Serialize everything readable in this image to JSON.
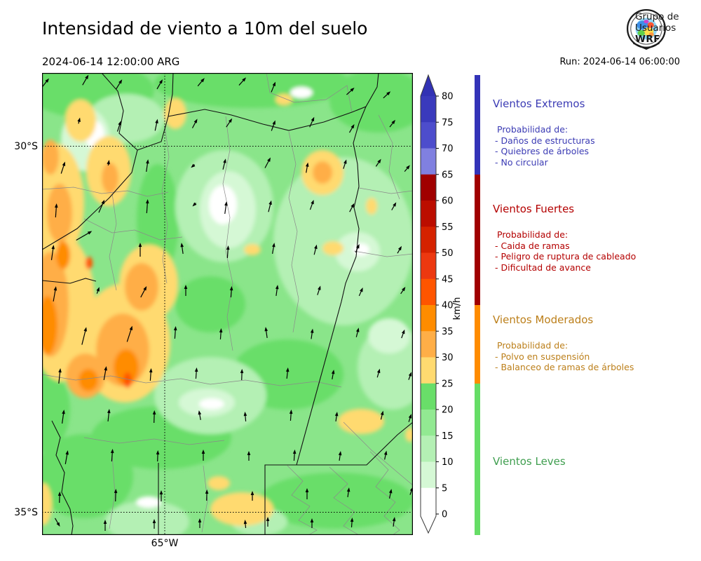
{
  "header": {
    "title": "Intensidad de viento a 10m del suelo",
    "valid_time": "2024-06-14 12:00:00 ARG",
    "run_label": "Run: 2024-06-14 06:00:00",
    "logo": {
      "line1": "Grupo de",
      "line2": "Usuarios",
      "line3": "WRF"
    }
  },
  "map": {
    "axis_labels": {
      "lat_top": "30°S",
      "lat_bottom": "35°S",
      "lon": "65°W"
    }
  },
  "colorbar": {
    "unit": "km/h",
    "ticks": [
      80,
      75,
      70,
      65,
      60,
      55,
      50,
      45,
      40,
      35,
      30,
      25,
      20,
      15,
      10,
      5,
      0
    ],
    "arrow_color": "#3232B4",
    "under_color": "#FFFFFF",
    "segment_colors": [
      "#3A3ABC",
      "#4D4DCC",
      "#8080E0",
      "#A00000",
      "#BB0D00",
      "#D52200",
      "#EC3810",
      "#FF5500",
      "#FF8C00",
      "#FFAE47",
      "#FFDA70",
      "#69DE69",
      "#92E992",
      "#B4F0B4",
      "#D5F8D5",
      "#FFFFFF"
    ]
  },
  "legend": {
    "categories": [
      {
        "name": "Vientos Extremos",
        "color": "#3B3BB4",
        "bar_color": "#3333B8",
        "range_kmh": [
          65,
          null
        ],
        "intro": "Probabilidad de:",
        "items": [
          "- Daños de estructuras",
          "- Quiebres de árboles",
          "- No circular"
        ]
      },
      {
        "name": "Vientos Fuertes",
        "color": "#B40000",
        "bar_color": "#A00000",
        "range_kmh": [
          40,
          65
        ],
        "intro": "Probabilidad de:",
        "items": [
          "- Caida de ramas",
          "- Peligro de ruptura de cableado",
          "- Dificultad de avance"
        ]
      },
      {
        "name": "Vientos Moderados",
        "color": "#BC7F1A",
        "bar_color": "#FF8C00",
        "range_kmh": [
          25,
          40
        ],
        "intro": "Probabilidad de:",
        "items": [
          "- Polvo en suspensión",
          "- Balanceo de ramas de árboles"
        ]
      },
      {
        "name": "Vientos Leves",
        "color": "#3F9E4F",
        "bar_color": "#66DD66",
        "range_kmh": [
          0,
          25
        ],
        "intro": "",
        "items": []
      }
    ]
  },
  "wind_arrows": [
    [
      5,
      14,
      38,
      16
    ],
    [
      62,
      10,
      30,
      17
    ],
    [
      110,
      16,
      32,
      16
    ],
    [
      168,
      16,
      30,
      16
    ],
    [
      227,
      13,
      40,
      15
    ],
    [
      286,
      12,
      42,
      15
    ],
    [
      330,
      20,
      22,
      16
    ],
    [
      440,
      26,
      48,
      15
    ],
    [
      492,
      31,
      47,
      14
    ],
    [
      53,
      68,
      14,
      9
    ],
    [
      110,
      76,
      18,
      16
    ],
    [
      163,
      74,
      12,
      17
    ],
    [
      218,
      72,
      28,
      15
    ],
    [
      267,
      71,
      34,
      15
    ],
    [
      330,
      75,
      20,
      16
    ],
    [
      385,
      70,
      24,
      16
    ],
    [
      442,
      79,
      30,
      14
    ],
    [
      500,
      72,
      38,
      13
    ],
    [
      30,
      135,
      18,
      18
    ],
    [
      95,
      128,
      10,
      8
    ],
    [
      150,
      132,
      8,
      18
    ],
    [
      215,
      133,
      230,
      7
    ],
    [
      260,
      130,
      14,
      16
    ],
    [
      322,
      128,
      28,
      17
    ],
    [
      378,
      135,
      10,
      15
    ],
    [
      432,
      130,
      18,
      14
    ],
    [
      480,
      128,
      34,
      13
    ],
    [
      521,
      136,
      40,
      12
    ],
    [
      20,
      196,
      4,
      20
    ],
    [
      85,
      190,
      24,
      20
    ],
    [
      150,
      190,
      4,
      20
    ],
    [
      217,
      188,
      226,
      7
    ],
    [
      262,
      192,
      8,
      18
    ],
    [
      325,
      190,
      14,
      17
    ],
    [
      385,
      188,
      20,
      15
    ],
    [
      442,
      192,
      28,
      14
    ],
    [
      502,
      190,
      30,
      13
    ],
    [
      15,
      256,
      8,
      22
    ],
    [
      60,
      232,
      60,
      26
    ],
    [
      140,
      252,
      0,
      20
    ],
    [
      200,
      250,
      352,
      16
    ],
    [
      265,
      255,
      4,
      18
    ],
    [
      330,
      250,
      10,
      16
    ],
    [
      390,
      252,
      14,
      15
    ],
    [
      450,
      250,
      24,
      13
    ],
    [
      510,
      252,
      30,
      12
    ],
    [
      18,
      315,
      10,
      22
    ],
    [
      80,
      310,
      20,
      10
    ],
    [
      145,
      312,
      28,
      18
    ],
    [
      205,
      310,
      0,
      16
    ],
    [
      270,
      312,
      4,
      16
    ],
    [
      335,
      310,
      8,
      16
    ],
    [
      395,
      310,
      18,
      14
    ],
    [
      455,
      312,
      24,
      13
    ],
    [
      515,
      310,
      34,
      12
    ],
    [
      60,
      375,
      14,
      26
    ],
    [
      125,
      372,
      18,
      24
    ],
    [
      190,
      370,
      4,
      18
    ],
    [
      255,
      372,
      4,
      16
    ],
    [
      320,
      370,
      352,
      16
    ],
    [
      385,
      372,
      8,
      15
    ],
    [
      450,
      370,
      14,
      14
    ],
    [
      515,
      372,
      20,
      13
    ],
    [
      25,
      432,
      6,
      22
    ],
    [
      90,
      428,
      10,
      20
    ],
    [
      155,
      430,
      4,
      18
    ],
    [
      220,
      428,
      4,
      16
    ],
    [
      285,
      430,
      2,
      16
    ],
    [
      350,
      428,
      6,
      16
    ],
    [
      415,
      430,
      10,
      14
    ],
    [
      480,
      428,
      16,
      13
    ],
    [
      525,
      432,
      20,
      12
    ],
    [
      30,
      490,
      8,
      20
    ],
    [
      95,
      488,
      6,
      18
    ],
    [
      160,
      490,
      2,
      18
    ],
    [
      225,
      488,
      350,
      14
    ],
    [
      290,
      490,
      355,
      14
    ],
    [
      355,
      488,
      4,
      16
    ],
    [
      420,
      490,
      8,
      14
    ],
    [
      485,
      488,
      14,
      13
    ],
    [
      525,
      492,
      18,
      12
    ],
    [
      35,
      548,
      10,
      20
    ],
    [
      100,
      545,
      4,
      18
    ],
    [
      165,
      546,
      2,
      16
    ],
    [
      230,
      545,
      0,
      16
    ],
    [
      295,
      546,
      0,
      14
    ],
    [
      360,
      545,
      4,
      16
    ],
    [
      425,
      546,
      8,
      14
    ],
    [
      490,
      545,
      12,
      13
    ],
    [
      25,
      605,
      2,
      16
    ],
    [
      105,
      602,
      2,
      18
    ],
    [
      170,
      603,
      0,
      16
    ],
    [
      235,
      602,
      2,
      16
    ],
    [
      300,
      603,
      0,
      14
    ],
    [
      378,
      600,
      0,
      16
    ],
    [
      437,
      598,
      8,
      14
    ],
    [
      497,
      600,
      12,
      14
    ],
    [
      527,
      596,
      20,
      12
    ],
    [
      22,
      641,
      150,
      14
    ],
    [
      90,
      645,
      0,
      16
    ],
    [
      160,
      643,
      0,
      14
    ],
    [
      225,
      642,
      0,
      14
    ],
    [
      290,
      643,
      355,
      12
    ],
    [
      322,
      640,
      0,
      14
    ],
    [
      385,
      642,
      0,
      14
    ],
    [
      442,
      641,
      4,
      14
    ],
    [
      502,
      640,
      8,
      14
    ]
  ]
}
